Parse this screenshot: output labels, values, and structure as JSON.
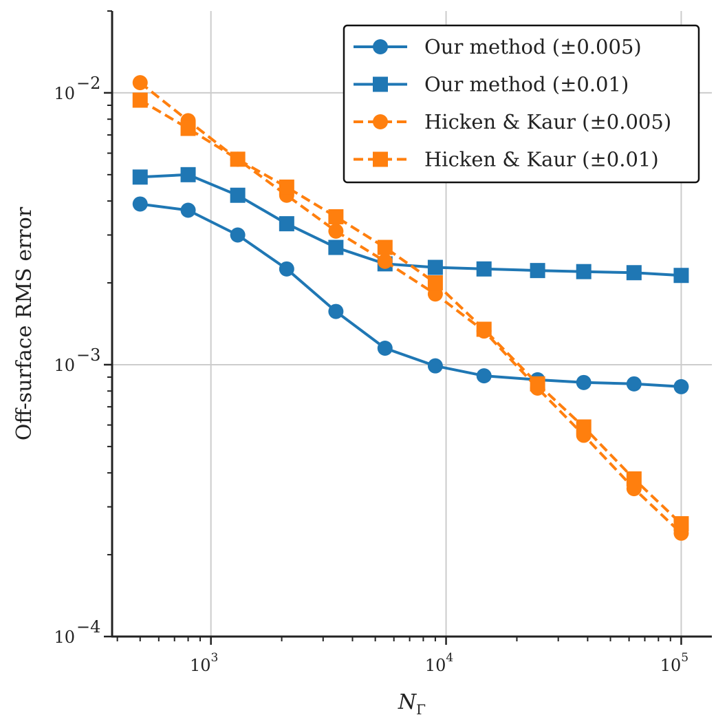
{
  "chart_data": {
    "type": "line",
    "xscale": "log",
    "yscale": "log",
    "xlim": [
      380,
      135000
    ],
    "ylim": [
      0.0001,
      0.02
    ],
    "xlabel": "N",
    "xlabel_subscript": "Γ",
    "ylabel": "Off-surface RMS error",
    "grid": true,
    "legend_position": "top-right",
    "xticks": [
      {
        "value": 1000,
        "base": "10",
        "exp": "3"
      },
      {
        "value": 10000,
        "base": "10",
        "exp": "4"
      },
      {
        "value": 100000,
        "base": "10",
        "exp": "5"
      }
    ],
    "yticks": [
      {
        "value": 0.0001,
        "base": "10",
        "exp": "−4"
      },
      {
        "value": 0.001,
        "base": "10",
        "exp": "−3"
      },
      {
        "value": 0.01,
        "base": "10",
        "exp": "−2"
      }
    ],
    "x": [
      500,
      800,
      1300,
      2100,
      3400,
      5500,
      9000,
      14500,
      24500,
      38500,
      63000,
      100000
    ],
    "series": [
      {
        "name": "Our method (±0.005)",
        "color": "#1f77b4",
        "marker": "circle",
        "linestyle": "solid",
        "values": [
          0.0039,
          0.0037,
          0.003,
          0.00225,
          0.00157,
          0.00115,
          0.00099,
          0.00091,
          0.00088,
          0.00086,
          0.00085,
          0.00083
        ]
      },
      {
        "name": "Our method (±0.01)",
        "color": "#1f77b4",
        "marker": "square",
        "linestyle": "solid",
        "values": [
          0.0049,
          0.005,
          0.0042,
          0.0033,
          0.0027,
          0.00235,
          0.00228,
          0.00225,
          0.00222,
          0.0022,
          0.00218,
          0.00213
        ]
      },
      {
        "name": "Hicken & Kaur (±0.005)",
        "color": "#ff7f0e",
        "marker": "circle",
        "linestyle": "dashed",
        "values": [
          0.0109,
          0.0079,
          0.0057,
          0.0042,
          0.0031,
          0.0024,
          0.00182,
          0.00133,
          0.00082,
          0.00055,
          0.00035,
          0.00024
        ]
      },
      {
        "name": "Hicken & Kaur (±0.01)",
        "color": "#ff7f0e",
        "marker": "square",
        "linestyle": "dashed",
        "values": [
          0.0094,
          0.0074,
          0.0057,
          0.0045,
          0.0035,
          0.0027,
          0.002,
          0.00135,
          0.00085,
          0.00059,
          0.00038,
          0.00026
        ]
      }
    ]
  }
}
